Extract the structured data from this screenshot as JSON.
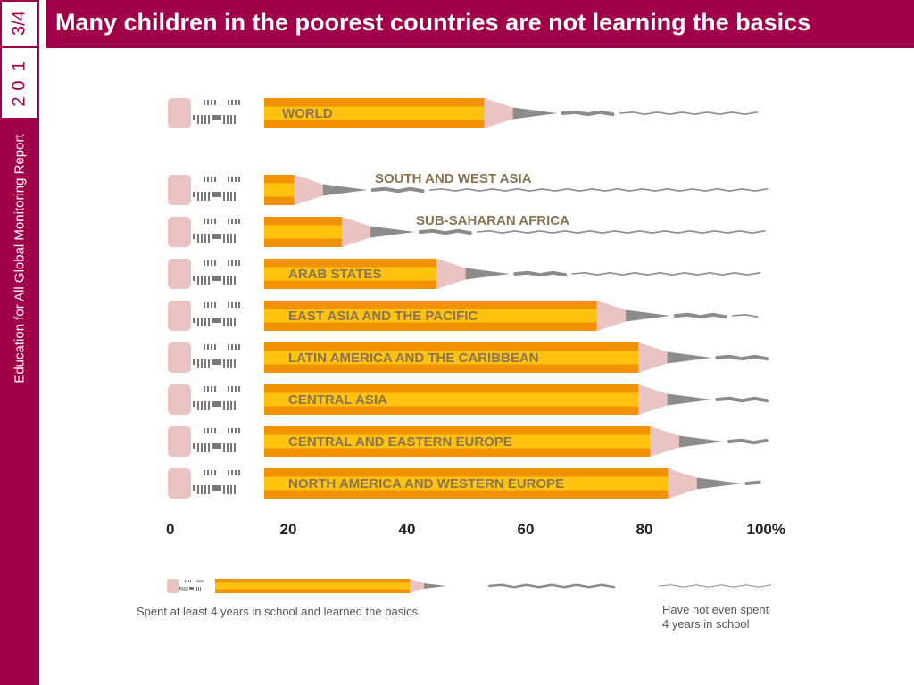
{
  "header": {
    "title": "Many children in the poorest countries are not learning the basics"
  },
  "sidebar": {
    "year_parts": [
      "2",
      "0",
      "1",
      "3/4"
    ],
    "caption": "Education for All Global Monitoring Report"
  },
  "colors": {
    "accent": "#a0004a",
    "pencil_yellow": "#ffc20e",
    "pencil_orange": "#f39200",
    "wood": "#eac3c3",
    "lead": "#8c8c8c"
  },
  "chart_data": {
    "type": "bar",
    "categories": [
      "WORLD",
      "SOUTH AND WEST ASIA",
      "SUB-SAHARAN AFRICA",
      "ARAB STATES",
      "EAST ASIA AND THE PACIFIC",
      "LATIN AMERICA AND THE CARIBBEAN",
      "CENTRAL ASIA",
      "CENTRAL AND EASTERN EUROPE",
      "NORTH AMERICA AND WESTERN EUROPE"
    ],
    "values": [
      53,
      21,
      29,
      45,
      72,
      79,
      79,
      81,
      84
    ],
    "x_ticks": [
      "0",
      "20",
      "40",
      "60",
      "80",
      "100%"
    ],
    "xlim": [
      0,
      100
    ],
    "legend": [
      "Spent at least 4 years in school and learned the basics",
      "Have not even spent 4 years in school"
    ]
  }
}
